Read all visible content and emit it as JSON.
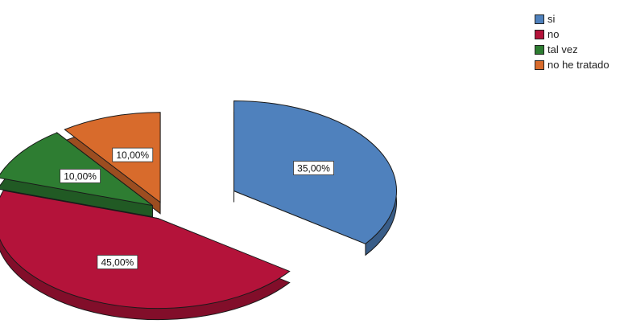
{
  "chart_data": {
    "type": "pie",
    "style": "3d-exploded",
    "legend_position": "top-right",
    "categories": [
      "si",
      "no",
      "tal vez",
      "no he tratado"
    ],
    "values": [
      35,
      45,
      10,
      10
    ],
    "data_labels": [
      "35,00%",
      "45,00%",
      "10,00%",
      "10,00%"
    ],
    "colors": [
      "#4f81bd",
      "#b4133a",
      "#2e7d32",
      "#d86b2c"
    ]
  }
}
